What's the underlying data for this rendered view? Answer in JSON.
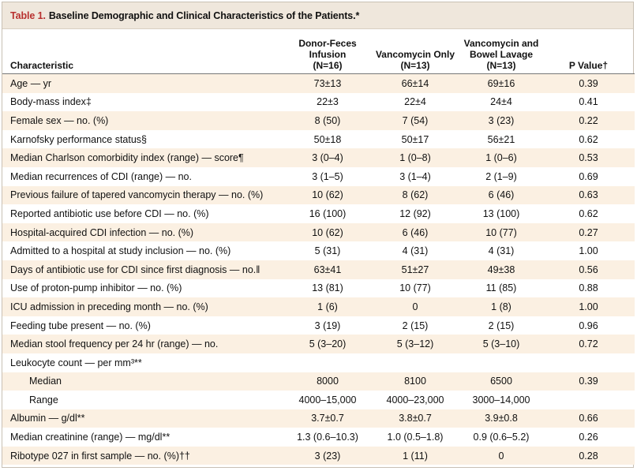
{
  "table": {
    "label": "Table 1.",
    "title": "Baseline Demographic and Clinical Characteristics of the Patients.*",
    "headers": {
      "characteristic": "Characteristic",
      "col1": [
        "Donor-Feces",
        "Infusion",
        "(N=16)"
      ],
      "col2": [
        "Vancomycin Only",
        "(N=13)"
      ],
      "col3": [
        "Vancomycin and",
        "Bowel Lavage",
        "(N=13)"
      ],
      "col4": "P Value†"
    },
    "rows": [
      {
        "label": "Age — yr",
        "c1": "73±13",
        "c2": "66±14",
        "c3": "69±16",
        "p": "0.39"
      },
      {
        "label": "Body-mass index‡",
        "c1": "22±3",
        "c2": "22±4",
        "c3": "24±4",
        "p": "0.41"
      },
      {
        "label": "Female sex — no. (%)",
        "c1": "8 (50)",
        "c2": "7 (54)",
        "c3": "3 (23)",
        "p": "0.22"
      },
      {
        "label": "Karnofsky performance status§",
        "c1": "50±18",
        "c2": "50±17",
        "c3": "56±21",
        "p": "0.62"
      },
      {
        "label": "Median Charlson comorbidity index (range) — score¶",
        "c1": "3 (0–4)",
        "c2": "1 (0–8)",
        "c3": "1 (0–6)",
        "p": "0.53"
      },
      {
        "label": "Median recurrences of CDI (range) — no.",
        "c1": "3 (1–5)",
        "c2": "3 (1–4)",
        "c3": "2 (1–9)",
        "p": "0.69"
      },
      {
        "label": "Previous failure of tapered vancomycin therapy — no. (%)",
        "c1": "10 (62)",
        "c2": "8 (62)",
        "c3": "6 (46)",
        "p": "0.63"
      },
      {
        "label": "Reported antibiotic use before CDI — no. (%)",
        "c1": "16 (100)",
        "c2": "12 (92)",
        "c3": "13 (100)",
        "p": "0.62"
      },
      {
        "label": "Hospital-acquired CDI infection — no. (%)",
        "c1": "10 (62)",
        "c2": "6 (46)",
        "c3": "10 (77)",
        "p": "0.27"
      },
      {
        "label": "Admitted to a hospital at study inclusion — no. (%)",
        "c1": "5 (31)",
        "c2": "4 (31)",
        "c3": "4 (31)",
        "p": "1.00"
      },
      {
        "label": "Days of antibiotic use for CDI since first diagnosis — no.‖",
        "c1": "63±41",
        "c2": "51±27",
        "c3": "49±38",
        "p": "0.56"
      },
      {
        "label": "Use of proton-pump inhibitor — no. (%)",
        "c1": "13 (81)",
        "c2": "10 (77)",
        "c3": "11 (85)",
        "p": "0.88"
      },
      {
        "label": "ICU admission in preceding month — no. (%)",
        "c1": "1 (6)",
        "c2": "0",
        "c3": "1 (8)",
        "p": "1.00"
      },
      {
        "label": "Feeding tube present — no. (%)",
        "c1": "3 (19)",
        "c2": "2 (15)",
        "c3": "2 (15)",
        "p": "0.96"
      },
      {
        "label": "Median stool frequency per 24 hr (range) — no.",
        "c1": "5 (3–20)",
        "c2": "5 (3–12)",
        "c3": "5 (3–10)",
        "p": "0.72"
      },
      {
        "label": "Leukocyte count — per mm³**",
        "c1": "",
        "c2": "",
        "c3": "",
        "p": ""
      },
      {
        "label": "Median",
        "sub": true,
        "c1": "8000",
        "c2": "8100",
        "c3": "6500",
        "p": "0.39"
      },
      {
        "label": "Range",
        "sub": true,
        "c1": "4000–15,000",
        "c2": "4000–23,000",
        "c3": "3000–14,000",
        "p": ""
      },
      {
        "label": "Albumin — g/dl**",
        "c1": "3.7±0.7",
        "c2": "3.8±0.7",
        "c3": "3.9±0.8",
        "p": "0.66"
      },
      {
        "label": "Median creatinine (range) — mg/dl**",
        "c1": "1.3 (0.6–10.3)",
        "c2": "1.0 (0.5–1.8)",
        "c3": "0.9 (0.6–5.2)",
        "p": "0.26"
      },
      {
        "label": "Ribotype 027 in first sample — no. (%)††",
        "c1": "3 (23)",
        "c2": "1 (11)",
        "c3": "0",
        "p": "0.28"
      }
    ]
  }
}
